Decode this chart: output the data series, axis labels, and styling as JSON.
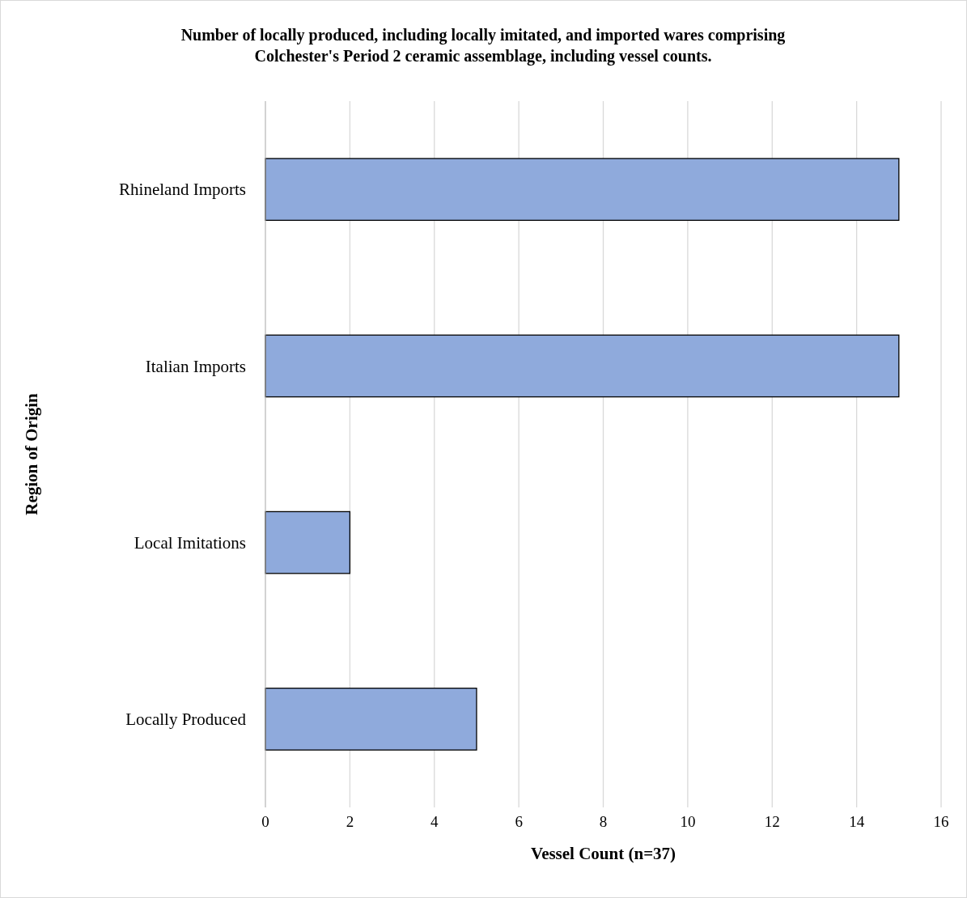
{
  "chart_data": {
    "type": "bar",
    "orientation": "horizontal",
    "title": "Number of locally produced, including locally imitated, and imported wares comprising Colchester's Period 2 ceramic assemblage, including vessel counts.",
    "xlabel": "Vessel Count (n=37)",
    "ylabel": "Region of Origin",
    "categories": [
      "Rhineland Imports",
      "Italian Imports",
      "Local Imitations",
      "Locally Produced"
    ],
    "values": [
      15,
      15,
      2,
      5
    ],
    "color": "#8faadc",
    "xlim": [
      0,
      16
    ],
    "xticks": [
      0,
      2,
      4,
      6,
      8,
      10,
      12,
      14,
      16
    ],
    "grid": "x"
  }
}
